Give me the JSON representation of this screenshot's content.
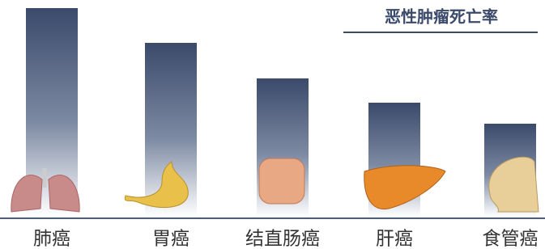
{
  "chart_data": {
    "type": "bar",
    "title": "恶性肿瘤死亡率",
    "categories": [
      "肺癌",
      "胃癌",
      "结直肠癌",
      "肝癌",
      "食管癌"
    ],
    "values": [
      258,
      215,
      171,
      141,
      115
    ],
    "color": "#3b4a6b"
  }
}
